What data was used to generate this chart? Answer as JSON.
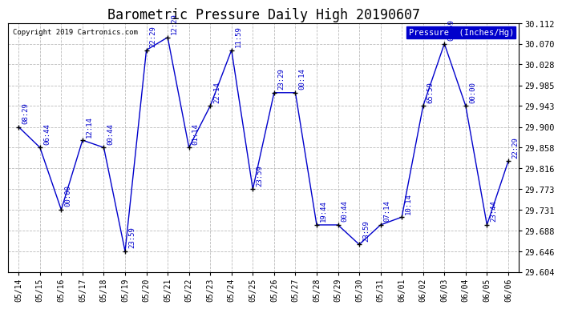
{
  "title": "Barometric Pressure Daily High 20190607",
  "copyright": "Copyright 2019 Cartronics.com",
  "legend_label": "Pressure  (Inches/Hg)",
  "dates": [
    "05/14",
    "05/15",
    "05/16",
    "05/17",
    "05/18",
    "05/19",
    "05/20",
    "05/21",
    "05/22",
    "05/23",
    "05/24",
    "05/25",
    "05/26",
    "05/27",
    "05/28",
    "05/29",
    "05/30",
    "05/31",
    "06/01",
    "06/02",
    "06/03",
    "06/04",
    "06/05",
    "06/06"
  ],
  "values": [
    29.9,
    29.858,
    29.731,
    29.873,
    29.858,
    29.646,
    30.057,
    30.083,
    29.858,
    29.943,
    30.057,
    29.773,
    29.97,
    29.97,
    29.7,
    29.7,
    29.66,
    29.7,
    29.716,
    29.943,
    30.07,
    29.943,
    29.7,
    29.83
  ],
  "annotations": [
    "08:29",
    "06:44",
    "00:00",
    "12:14",
    "00:44",
    "23:59",
    "22:29",
    "12:29",
    "01:14",
    "22:14",
    "11:59",
    "23:59",
    "23:29",
    "00:14",
    "19:44",
    "00:44",
    "23:59",
    "07:14",
    "10:14",
    "65:59",
    "08:59",
    "00:00",
    "23:44",
    "22:29"
  ],
  "line_color": "#0000cc",
  "bg_color": "#ffffff",
  "grid_color": "#bbbbbb",
  "annotation_color": "#0000cc",
  "ylim_min": 29.604,
  "ylim_max": 30.112,
  "yticks": [
    29.604,
    29.646,
    29.688,
    29.731,
    29.773,
    29.816,
    29.858,
    29.9,
    29.943,
    29.985,
    30.028,
    30.07,
    30.112
  ],
  "title_fontsize": 12,
  "annotation_fontsize": 6.5,
  "legend_box_color": "#0000cc",
  "legend_text_color": "#ffffff"
}
